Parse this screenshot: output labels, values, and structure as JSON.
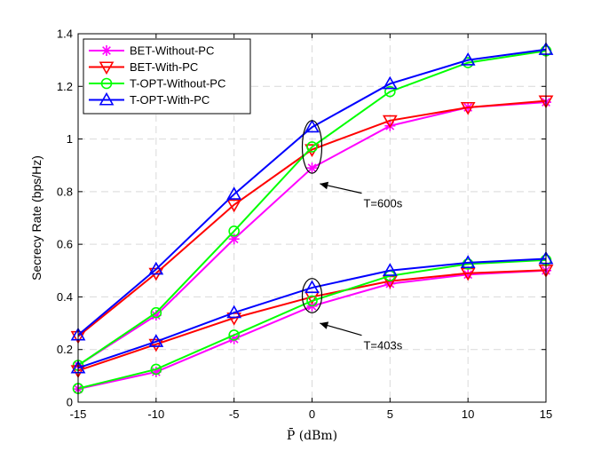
{
  "chart_data": {
    "type": "line",
    "xlabel": "P̄ (dBm)",
    "ylabel": "Secrecy Rate (bps/Hz)",
    "x": [
      -15,
      -10,
      -5,
      0,
      5,
      10,
      15
    ],
    "xlim": [
      -15,
      15
    ],
    "ylim": [
      0,
      1.4
    ],
    "xticks": [
      "-15",
      "-10",
      "-5",
      "0",
      "5",
      "10",
      "15"
    ],
    "yticks": [
      "0",
      "0.2",
      "0.4",
      "0.6",
      "0.8",
      "1",
      "1.2",
      "1.4"
    ],
    "grid": true,
    "legend_position": "top-left",
    "groups": [
      {
        "label": "T=600s",
        "series": [
          {
            "name": "BET-Without-PC",
            "color": "#ff00ff",
            "marker": "asterisk",
            "values": [
              0.14,
              0.33,
              0.62,
              0.89,
              1.05,
              1.12,
              1.14
            ]
          },
          {
            "name": "BET-With-PC",
            "color": "#ff0000",
            "marker": "triangle-down",
            "values": [
              0.25,
              0.49,
              0.75,
              0.96,
              1.07,
              1.12,
              1.145
            ]
          },
          {
            "name": "T-OPT-Without-PC",
            "color": "#00ff00",
            "marker": "circle",
            "values": [
              0.14,
              0.34,
              0.65,
              0.97,
              1.18,
              1.29,
              1.335
            ]
          },
          {
            "name": "T-OPT-With-PC",
            "color": "#0000ff",
            "marker": "triangle-up",
            "values": [
              0.255,
              0.505,
              0.79,
              1.045,
              1.21,
              1.3,
              1.34
            ]
          }
        ]
      },
      {
        "label": "T=403s",
        "series": [
          {
            "name": "BET-Without-PC",
            "color": "#ff00ff",
            "marker": "asterisk",
            "values": [
              0.05,
              0.115,
              0.24,
              0.365,
              0.45,
              0.485,
              0.5
            ]
          },
          {
            "name": "BET-With-PC",
            "color": "#ff0000",
            "marker": "triangle-down",
            "values": [
              0.12,
              0.22,
              0.32,
              0.4,
              0.46,
              0.49,
              0.502
            ]
          },
          {
            "name": "T-OPT-Without-PC",
            "color": "#00ff00",
            "marker": "circle",
            "values": [
              0.052,
              0.125,
              0.255,
              0.385,
              0.48,
              0.525,
              0.54
            ]
          },
          {
            "name": "T-OPT-With-PC",
            "color": "#0000ff",
            "marker": "triangle-up",
            "values": [
              0.13,
              0.23,
              0.34,
              0.435,
              0.5,
              0.53,
              0.545
            ]
          }
        ]
      }
    ],
    "legend": [
      {
        "name": "BET-Without-PC",
        "color": "#ff00ff",
        "marker": "asterisk"
      },
      {
        "name": "BET-With-PC",
        "color": "#ff0000",
        "marker": "triangle-down"
      },
      {
        "name": "T-OPT-Without-PC",
        "color": "#00ff00",
        "marker": "circle"
      },
      {
        "name": "T-OPT-With-PC",
        "color": "#0000ff",
        "marker": "triangle-up"
      }
    ],
    "annotations": [
      {
        "text": "T=600s",
        "ellipse_x": 0,
        "ellipse_y": [
          0.87,
          1.07
        ],
        "arrow_to": [
          0.5,
          0.83
        ],
        "text_at": [
          3.3,
          0.74
        ]
      },
      {
        "text": "T=403s",
        "ellipse_x": 0,
        "ellipse_y": [
          0.34,
          0.47
        ],
        "arrow_to": [
          0.5,
          0.3
        ],
        "text_at": [
          3.3,
          0.2
        ]
      }
    ]
  }
}
